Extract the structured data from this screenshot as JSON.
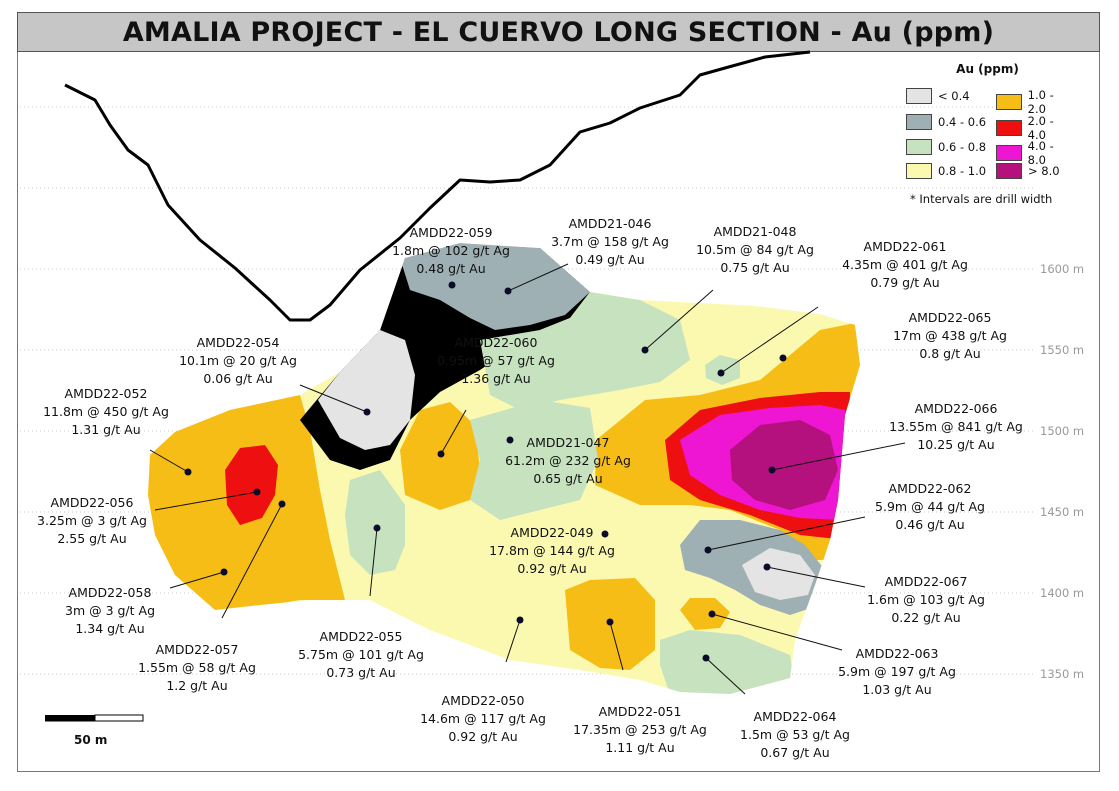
{
  "title": "AMALIA PROJECT - EL CUERVO LONG SECTION -  Au (ppm)",
  "legend": {
    "title": "Au (ppm)",
    "items": [
      {
        "label": "< 0.4",
        "color": "#e4e4e4"
      },
      {
        "label": "0.4 - 0.6",
        "color": "#9fb0b5"
      },
      {
        "label": "0.6 - 0.8",
        "color": "#c6e2bf"
      },
      {
        "label": "0.8 - 1.0",
        "color": "#fbf9b0"
      },
      {
        "label": "1.0 - 2.0",
        "color": "#f6bd16"
      },
      {
        "label": "2.0 - 4.0",
        "color": "#ee1010"
      },
      {
        "label": "4.0 - 8.0",
        "color": "#ee16d2"
      },
      {
        "label": "> 8.0",
        "color": "#b4107e"
      }
    ],
    "note": "* Intervals are drill width"
  },
  "elevations": [
    "1600 m",
    "1550 m",
    "1500 m",
    "1450 m",
    "1400 m",
    "1350 m"
  ],
  "scale_bar": {
    "label": "50 m"
  },
  "drill_holes": [
    {
      "id": "AMDD22-059",
      "interval": "1.8m @ 102 g/t Ag",
      "au": "0.48 g/t Au"
    },
    {
      "id": "AMDD21-046",
      "interval": "3.7m @ 158 g/t Ag",
      "au": "0.49 g/t Au"
    },
    {
      "id": "AMDD21-048",
      "interval": "10.5m @ 84 g/t Ag",
      "au": "0.75 g/t Au"
    },
    {
      "id": "AMDD22-061",
      "interval": "4.35m @ 401 g/t Ag",
      "au": "0.79 g/t Au"
    },
    {
      "id": "AMDD22-065",
      "interval": "17m @ 438 g/t Ag",
      "au": "0.8 g/t Au"
    },
    {
      "id": "AMDD22-054",
      "interval": "10.1m @ 20 g/t Ag",
      "au": "0.06 g/t Au"
    },
    {
      "id": "AMDD22-060",
      "interval": "0.95m @ 57 g/t Ag",
      "au": "1.36 g/t Au"
    },
    {
      "id": "AMDD22-052",
      "interval": "11.8m @ 450 g/t Ag",
      "au": "1.31 g/t Au"
    },
    {
      "id": "AMDD22-066",
      "interval": "13.55m @ 841 g/t Ag",
      "au": "10.25 g/t Au"
    },
    {
      "id": "AMDD21-047",
      "interval": "61.2m @ 232 g/t Ag",
      "au": "0.65 g/t Au"
    },
    {
      "id": "AMDD22-056",
      "interval": "3.25m @ 3 g/t Ag",
      "au": "2.55 g/t Au"
    },
    {
      "id": "AMDD22-062",
      "interval": "5.9m @ 44 g/t Ag",
      "au": "0.46 g/t Au"
    },
    {
      "id": "AMDD22-049",
      "interval": "17.8m @ 144 g/t Ag",
      "au": "0.92 g/t Au"
    },
    {
      "id": "AMDD22-058",
      "interval": "3m @ 3 g/t Ag",
      "au": "1.34 g/t Au"
    },
    {
      "id": "AMDD22-067",
      "interval": "1.6m @ 103 g/t Ag",
      "au": "0.22 g/t Au"
    },
    {
      "id": "AMDD22-055",
      "interval": "5.75m @ 101 g/t Ag",
      "au": "0.73 g/t Au"
    },
    {
      "id": "AMDD22-057",
      "interval": "1.55m @ 58 g/t Ag",
      "au": "1.2 g/t Au"
    },
    {
      "id": "AMDD22-063",
      "interval": "5.9m @ 197 g/t Ag",
      "au": "1.03 g/t Au"
    },
    {
      "id": "AMDD22-050",
      "interval": "14.6m @ 117 g/t Ag",
      "au": "0.92 g/t Au"
    },
    {
      "id": "AMDD22-051",
      "interval": "17.35m @ 253 g/t Ag",
      "au": "1.11 g/t Au"
    },
    {
      "id": "AMDD22-064",
      "interval": "1.5m @ 53 g/t Ag",
      "au": "0.67 g/t Au"
    }
  ]
}
